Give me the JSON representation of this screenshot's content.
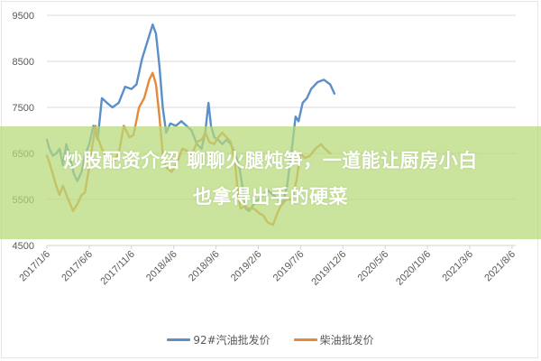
{
  "headline": {
    "line1": "炒股配资介绍 聊聊火腿炖笋，一道能让厨房小白",
    "line2": "也拿得出手的硬菜"
  },
  "colors": {
    "gasoline": "#5b8fc9",
    "diesel": "#e6893a",
    "overlay": "#b6da78",
    "grid": "#d9d9d9"
  },
  "chart_data": {
    "type": "line",
    "title": "",
    "xlabel": "",
    "ylabel": "",
    "ylim": [
      4500,
      9500
    ],
    "yticks": [
      4500,
      5500,
      6500,
      7500,
      8500,
      9500
    ],
    "grid": "horizontal",
    "legend_position": "bottom",
    "categories": [
      "2017/1/6",
      "2017/6/6",
      "2017/11/6",
      "2018/4/6",
      "2018/9/6",
      "2019/2/6",
      "2019/7/6",
      "2019/12/6",
      "2020/5/6",
      "2020/10/6",
      "2021/3/6",
      "2021/8/6"
    ],
    "series": [
      {
        "name": "92#汽油批发价",
        "color": "#5b8fc9",
        "points": [
          [
            0.0,
            6800
          ],
          [
            0.06,
            6600
          ],
          [
            0.14,
            6450
          ],
          [
            0.22,
            6500
          ],
          [
            0.3,
            6600
          ],
          [
            0.38,
            6250
          ],
          [
            0.46,
            6700
          ],
          [
            0.55,
            6400
          ],
          [
            0.64,
            6050
          ],
          [
            0.72,
            5900
          ],
          [
            0.82,
            6100
          ],
          [
            0.9,
            6450
          ],
          [
            1.0,
            6700
          ],
          [
            1.1,
            7100
          ],
          [
            1.2,
            6800
          ],
          [
            1.3,
            7700
          ],
          [
            1.42,
            7600
          ],
          [
            1.55,
            7500
          ],
          [
            1.7,
            7600
          ],
          [
            1.85,
            7950
          ],
          [
            2.0,
            7900
          ],
          [
            2.12,
            8000
          ],
          [
            2.25,
            8550
          ],
          [
            2.4,
            9000
          ],
          [
            2.5,
            9300
          ],
          [
            2.58,
            9100
          ],
          [
            2.66,
            8400
          ],
          [
            2.74,
            7500
          ],
          [
            2.82,
            6950
          ],
          [
            2.92,
            7150
          ],
          [
            3.05,
            7100
          ],
          [
            3.18,
            7200
          ],
          [
            3.3,
            7100
          ],
          [
            3.42,
            7000
          ],
          [
            3.55,
            6700
          ],
          [
            3.66,
            6600
          ],
          [
            3.75,
            7000
          ],
          [
            3.82,
            7600
          ],
          [
            3.88,
            7100
          ],
          [
            3.96,
            6850
          ],
          [
            4.05,
            6800
          ],
          [
            4.15,
            6700
          ],
          [
            4.25,
            6800
          ],
          [
            4.35,
            6700
          ],
          [
            4.45,
            6500
          ],
          [
            4.55,
            6200
          ],
          [
            4.62,
            5800
          ],
          [
            4.7,
            5300
          ],
          [
            4.78,
            5250
          ],
          [
            4.9,
            5400
          ],
          [
            5.0,
            5500
          ],
          [
            5.12,
            5600
          ],
          [
            5.22,
            5700
          ],
          [
            5.35,
            5600
          ],
          [
            5.48,
            5500
          ],
          [
            5.58,
            5400
          ],
          [
            5.68,
            5800
          ],
          [
            5.78,
            6500
          ],
          [
            5.88,
            7300
          ],
          [
            5.95,
            7200
          ],
          [
            6.05,
            7600
          ],
          [
            6.15,
            7700
          ],
          [
            6.25,
            7900
          ],
          [
            6.4,
            8050
          ],
          [
            6.55,
            8100
          ],
          [
            6.7,
            8000
          ],
          [
            6.8,
            7800
          ]
        ]
      },
      {
        "name": "柴油批发价",
        "color": "#e6893a",
        "points": [
          [
            0.0,
            6450
          ],
          [
            0.06,
            6300
          ],
          [
            0.14,
            6050
          ],
          [
            0.22,
            5800
          ],
          [
            0.3,
            5600
          ],
          [
            0.38,
            5800
          ],
          [
            0.46,
            5600
          ],
          [
            0.55,
            5400
          ],
          [
            0.62,
            5250
          ],
          [
            0.72,
            5400
          ],
          [
            0.82,
            5600
          ],
          [
            0.9,
            5650
          ],
          [
            1.0,
            6200
          ],
          [
            1.08,
            6700
          ],
          [
            1.15,
            7100
          ],
          [
            1.22,
            6800
          ],
          [
            1.3,
            6600
          ],
          [
            1.42,
            6400
          ],
          [
            1.55,
            6300
          ],
          [
            1.7,
            6500
          ],
          [
            1.82,
            7100
          ],
          [
            1.95,
            6850
          ],
          [
            2.05,
            6900
          ],
          [
            2.18,
            7500
          ],
          [
            2.3,
            7700
          ],
          [
            2.42,
            8100
          ],
          [
            2.5,
            8250
          ],
          [
            2.58,
            8000
          ],
          [
            2.66,
            7300
          ],
          [
            2.74,
            6500
          ],
          [
            2.82,
            6200
          ],
          [
            2.95,
            6100
          ],
          [
            3.08,
            6300
          ],
          [
            3.2,
            6600
          ],
          [
            3.32,
            6550
          ],
          [
            3.42,
            6450
          ],
          [
            3.55,
            6750
          ],
          [
            3.66,
            6800
          ],
          [
            3.75,
            6950
          ],
          [
            3.84,
            6750
          ],
          [
            3.95,
            6700
          ],
          [
            4.05,
            6850
          ],
          [
            4.15,
            6950
          ],
          [
            4.25,
            6850
          ],
          [
            4.35,
            6750
          ],
          [
            4.45,
            6300
          ],
          [
            4.52,
            5600
          ],
          [
            4.58,
            5300
          ],
          [
            4.66,
            5350
          ],
          [
            4.78,
            5300
          ],
          [
            4.9,
            5300
          ],
          [
            5.02,
            5200
          ],
          [
            5.12,
            5150
          ],
          [
            5.22,
            5000
          ],
          [
            5.35,
            4950
          ],
          [
            5.45,
            5200
          ],
          [
            5.55,
            5400
          ],
          [
            5.68,
            5500
          ],
          [
            5.8,
            5500
          ],
          [
            5.9,
            5900
          ],
          [
            6.0,
            6500
          ],
          [
            6.1,
            6400
          ],
          [
            6.22,
            6450
          ],
          [
            6.35,
            6600
          ],
          [
            6.48,
            6700
          ],
          [
            6.58,
            6600
          ],
          [
            6.7,
            6500
          ]
        ]
      }
    ]
  },
  "legend": {
    "items": [
      {
        "label": "92#汽油批发价",
        "color": "#5b8fc9"
      },
      {
        "label": "柴油批发价",
        "color": "#e6893a"
      }
    ]
  }
}
